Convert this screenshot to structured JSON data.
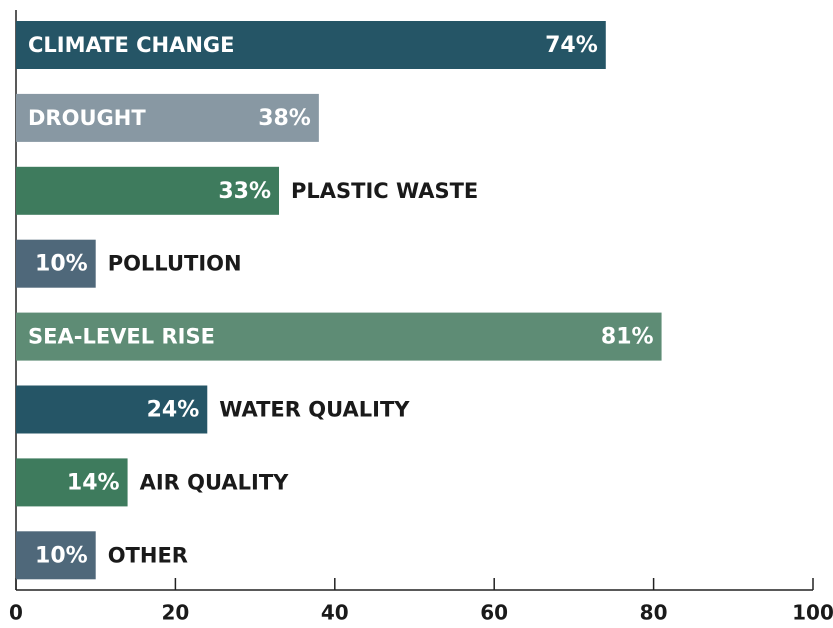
{
  "chart_data": {
    "type": "barh",
    "categories": [
      "CLIMATE CHANGE",
      "DROUGHT",
      "PLASTIC WASTE",
      "POLLUTION",
      "SEA-LEVEL RISE",
      "WATER QUALITY",
      "AIR QUALITY",
      "OTHER"
    ],
    "values": [
      74,
      38,
      33,
      10,
      81,
      24,
      14,
      10
    ],
    "value_labels": [
      "74%",
      "38%",
      "33%",
      "10%",
      "81%",
      "24%",
      "14%",
      "10%"
    ],
    "colors": [
      "#255566",
      "#8898a3",
      "#3e7b5d",
      "#4f687a",
      "#5e8c75",
      "#255566",
      "#3e7b5d",
      "#4f687a"
    ],
    "xlim": [
      0,
      100
    ],
    "xticks": [
      0,
      20,
      40,
      60,
      80,
      100
    ]
  }
}
